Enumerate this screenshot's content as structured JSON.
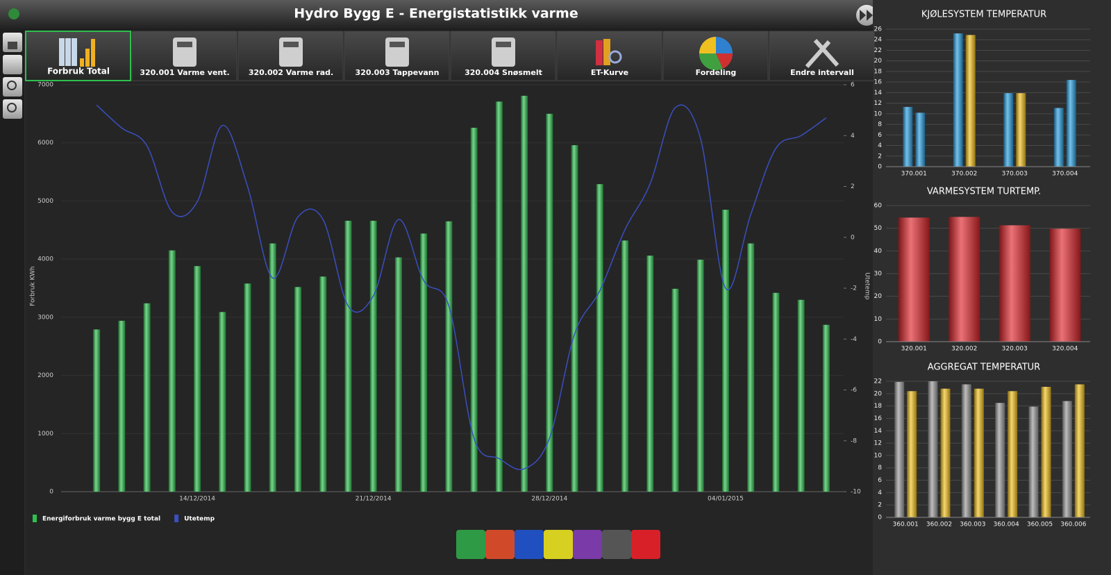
{
  "title": "Hydro Bygg E - Energistatistikk varme",
  "toolbar": [
    "Forbruk Total",
    "320.001 Varme vent.",
    "320.002 Varme rad.",
    "320.003 Tappevann",
    "320.004 Snøsmelt",
    "ET-Kurve",
    "Fordeling",
    "Endre intervall"
  ],
  "chart_data": [
    {
      "type": "bar",
      "ylabel": "Forbruk KWh",
      "y2label": "Utetemp",
      "categories": [
        null,
        null,
        null,
        null,
        "14/12/2014",
        null,
        null,
        null,
        null,
        null,
        null,
        "21/12/2014",
        null,
        null,
        null,
        null,
        null,
        null,
        "28/12/2014",
        null,
        null,
        null,
        null,
        null,
        null,
        "04/01/2015",
        null,
        null,
        null,
        null
      ],
      "ylim": [
        0,
        7000
      ],
      "yticks": [
        0,
        1000,
        2000,
        3000,
        4000,
        5000,
        6000,
        7000
      ],
      "y2lim": [
        -10,
        6
      ],
      "y2ticks": [
        -10,
        -8,
        -6,
        -4,
        -2,
        0,
        2,
        4,
        6
      ],
      "grid": true,
      "legend": "bottom-left",
      "series": [
        {
          "name": "Energiforbruk varme bygg E total",
          "color": "#2fbf4f",
          "values": [
            2790,
            2940,
            3240,
            4150,
            3880,
            3090,
            3580,
            4270,
            3520,
            3700,
            4660,
            4660,
            4030,
            4440,
            4650,
            6260,
            6710,
            6810,
            6500,
            5960,
            5290,
            4320,
            4060,
            3490,
            3990,
            4850,
            4270,
            3420,
            3300,
            2870
          ]
        },
        {
          "name": "Utetemp",
          "type": "line",
          "axis": "y2",
          "color": "#3a4fc0",
          "values": [
            5.2,
            4.3,
            3.6,
            1.0,
            1.4,
            4.4,
            2.0,
            -1.6,
            0.8,
            0.7,
            -2.7,
            -2.3,
            0.7,
            -1.7,
            -2.7,
            -7.9,
            -8.7,
            -9.1,
            -7.9,
            -3.8,
            -2.1,
            0.3,
            2.1,
            5.1,
            3.9,
            -2.0,
            0.9,
            3.5,
            4.0,
            4.7
          ]
        }
      ]
    },
    {
      "type": "bar",
      "title": "KJØLESYSTEM TEMPERATUR",
      "categories": [
        "370.001",
        "370.002",
        "370.003",
        "370.004"
      ],
      "ylim": [
        0,
        26
      ],
      "yticks": [
        0,
        2,
        4,
        6,
        8,
        10,
        12,
        14,
        16,
        18,
        20,
        22,
        24,
        26
      ],
      "grid": true,
      "series": [
        {
          "color": "#2a9fe0",
          "values": [
            11.3,
            25.2,
            13.9,
            11.1
          ]
        },
        {
          "colors": [
            "#2a9fe0",
            "#f2c21e",
            "#f2c21e",
            "#2a9fe0"
          ],
          "values": [
            10.2,
            24.9,
            13.9,
            16.4
          ]
        }
      ]
    },
    {
      "type": "bar",
      "title": "VARMESYSTEM TURTEMP.",
      "categories": [
        "320.001",
        "320.002",
        "320.003",
        "320.004"
      ],
      "ylim": [
        0,
        60
      ],
      "yticks": [
        0,
        10,
        20,
        30,
        40,
        50,
        60
      ],
      "grid": true,
      "series": [
        {
          "color": "#e0262c",
          "values": [
            54.7,
            55,
            51.3,
            49.8
          ]
        }
      ]
    },
    {
      "type": "bar",
      "title": "AGGREGAT TEMPERATUR",
      "categories": [
        "360.001",
        "360.002",
        "360.003",
        "360.004",
        "360.005",
        "360.006"
      ],
      "ylim": [
        0,
        22
      ],
      "yticks": [
        0,
        2,
        4,
        6,
        8,
        10,
        12,
        14,
        16,
        18,
        20,
        22
      ],
      "grid": true,
      "series": [
        {
          "color": "#9a9a9a",
          "values": [
            21.9,
            22,
            21.5,
            18.5,
            17.9,
            18.8
          ]
        },
        {
          "color": "#f2c21e",
          "values": [
            20.4,
            20.8,
            20.8,
            20.4,
            21.1,
            21.5
          ]
        }
      ]
    }
  ]
}
